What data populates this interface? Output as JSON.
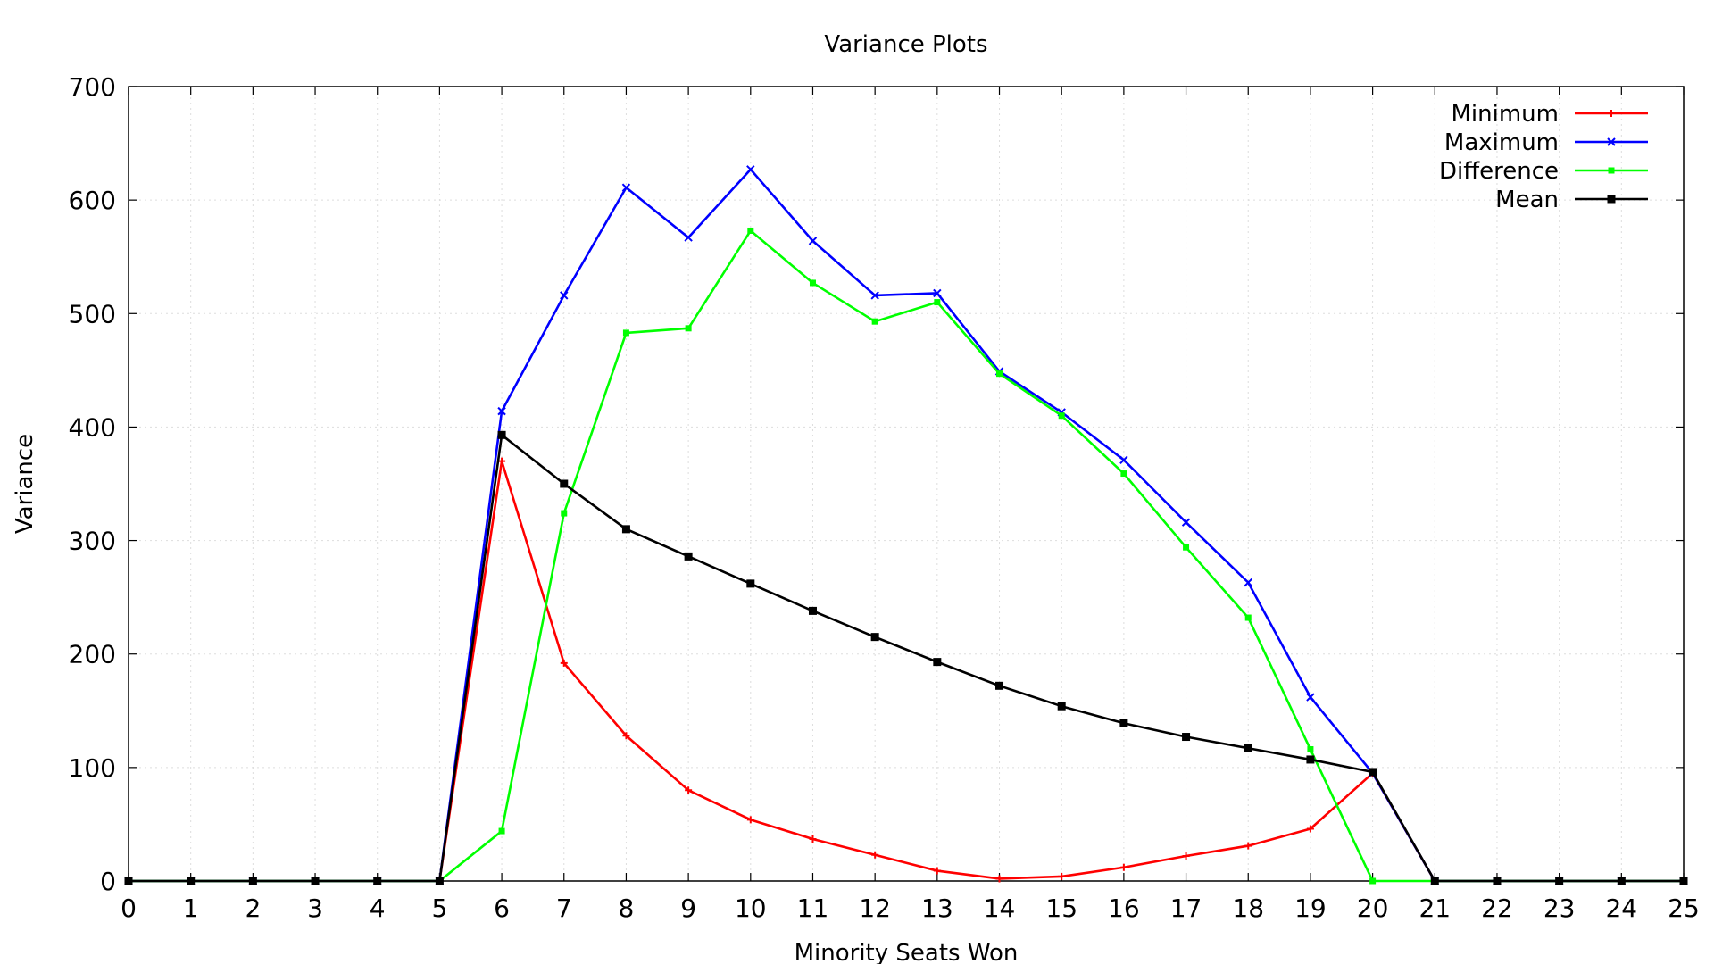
{
  "chart_data": {
    "type": "line",
    "title": "Variance Plots",
    "xlabel": "Minority Seats Won",
    "ylabel": "Variance",
    "xlim": [
      0,
      25
    ],
    "ylim": [
      0,
      700
    ],
    "xticks": [
      "0",
      "1",
      "2",
      "3",
      "4",
      "5",
      "6",
      "7",
      "8",
      "9",
      "10",
      "11",
      "12",
      "13",
      "14",
      "15",
      "16",
      "17",
      "18",
      "19",
      "20",
      "21",
      "22",
      "23",
      "24",
      "25"
    ],
    "yticks": [
      "0",
      "100",
      "200",
      "300",
      "400",
      "500",
      "600",
      "700"
    ],
    "grid": true,
    "legend_position": "top-right",
    "x": [
      0,
      1,
      2,
      3,
      4,
      5,
      6,
      7,
      8,
      9,
      10,
      11,
      12,
      13,
      14,
      15,
      16,
      17,
      18,
      19,
      20,
      21,
      22,
      23,
      24,
      25
    ],
    "series": [
      {
        "name": "Minimum",
        "color": "#ff0000",
        "marker": "plus",
        "values": [
          0,
          0,
          0,
          0,
          0,
          0,
          370,
          192,
          128,
          80,
          54,
          37,
          23,
          9,
          2,
          4,
          12,
          22,
          31,
          46,
          95,
          0,
          0,
          0,
          0,
          0
        ]
      },
      {
        "name": "Maximum",
        "color": "#0000ff",
        "marker": "cross",
        "values": [
          0,
          0,
          0,
          0,
          0,
          0,
          414,
          516,
          611,
          567,
          627,
          564,
          516,
          518,
          449,
          413,
          371,
          316,
          263,
          162,
          95,
          0,
          0,
          0,
          0,
          0
        ]
      },
      {
        "name": "Difference",
        "color": "#00ff00",
        "marker": "square",
        "values": [
          0,
          0,
          0,
          0,
          0,
          0,
          44,
          324,
          483,
          487,
          573,
          527,
          493,
          510,
          447,
          410,
          359,
          294,
          232,
          116,
          0,
          0,
          0,
          0,
          0,
          0
        ]
      },
      {
        "name": "Mean",
        "color": "#000000",
        "marker": "filled-square",
        "values": [
          0,
          0,
          0,
          0,
          0,
          0,
          393,
          350,
          310,
          286,
          262,
          238,
          215,
          193,
          172,
          154,
          139,
          127,
          117,
          107,
          96,
          0,
          0,
          0,
          0,
          0
        ]
      }
    ]
  }
}
